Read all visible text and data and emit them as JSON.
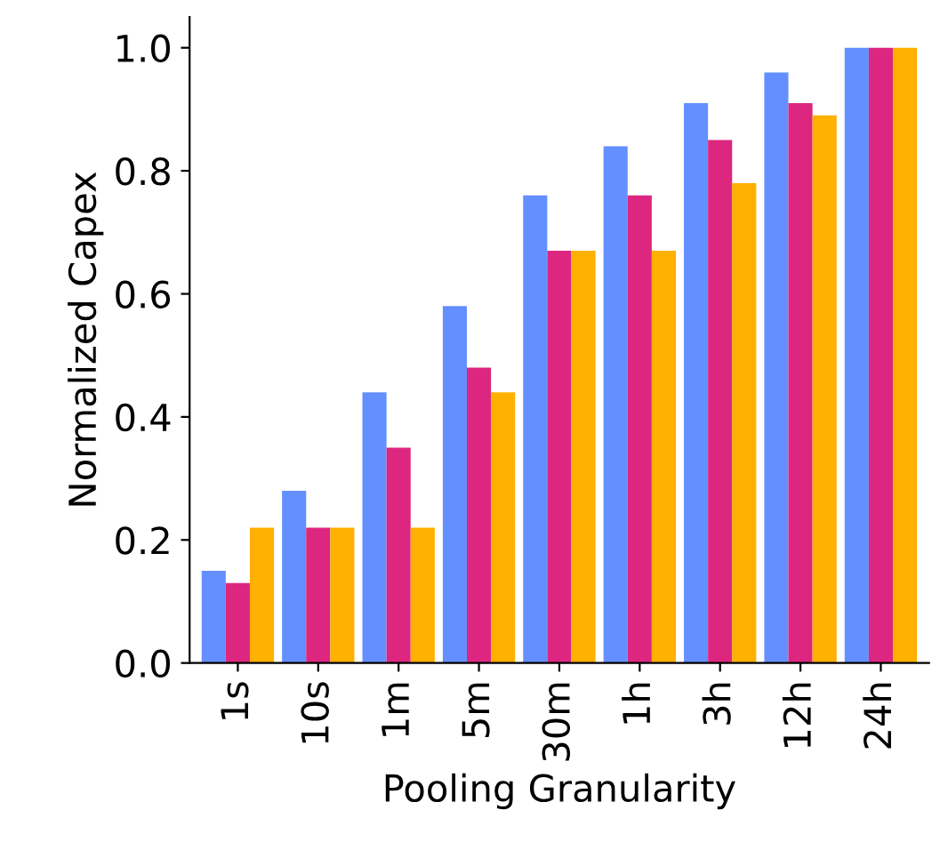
{
  "chart_data": {
    "type": "bar",
    "xlabel": "Pooling Granularity",
    "ylabel": "Normalized Capex",
    "categories": [
      "1s",
      "10s",
      "1m",
      "5m",
      "30m",
      "1h",
      "3h",
      "12h",
      "24h"
    ],
    "series": [
      {
        "color": "#648fff",
        "values": [
          0.15,
          0.28,
          0.44,
          0.58,
          0.76,
          0.84,
          0.91,
          0.96,
          1.0
        ]
      },
      {
        "color": "#dc267f",
        "values": [
          0.13,
          0.22,
          0.35,
          0.48,
          0.67,
          0.76,
          0.85,
          0.91,
          1.0
        ]
      },
      {
        "color": "#ffb000",
        "values": [
          0.22,
          0.22,
          0.22,
          0.44,
          0.67,
          0.67,
          0.78,
          0.89,
          1.0
        ]
      }
    ],
    "ylim": [
      0,
      1.05
    ],
    "yticks": [
      {
        "value": 0,
        "label": "0.0"
      },
      0.2,
      0.4,
      0.6,
      0.8,
      {
        "value": 1,
        "label": "1.0"
      }
    ],
    "grid": false,
    "legend": false
  }
}
